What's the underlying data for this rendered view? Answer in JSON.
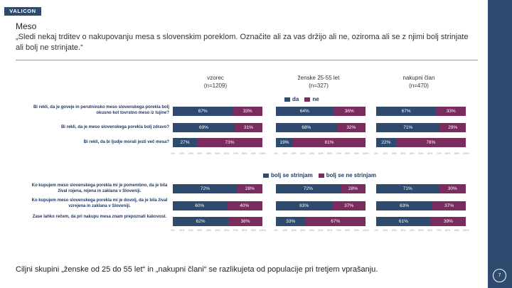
{
  "brand": {
    "logo_text": "VALICON"
  },
  "title": "Meso",
  "question": "„Sledi nekaj trditev o nakupovanju mesa s slovenskim poreklom. Označite ali za vas držijo ali ne, oziroma ali se z njimi bolj strinjate ali bolj ne strinjate.“",
  "footer": "Ciljni skupini „ženske od 25 do 55 let“ in „nakupni člani“ se razlikujeta od populacije pri tretjem vprašanju.",
  "page_number": "7",
  "columns": [
    {
      "label": "vzorec",
      "n": "(n=1209)"
    },
    {
      "label": "ženske 25-55 let",
      "n": "(n=327)"
    },
    {
      "label": "nakupni član",
      "n": "(n=470)"
    }
  ],
  "colors": {
    "series_a": "#2e4a6f",
    "series_b": "#7b2c5e",
    "accent": "#2e4a6f"
  },
  "chart_data": [
    {
      "type": "bar",
      "stacked": true,
      "orientation": "horizontal",
      "legend": [
        "da",
        "ne"
      ],
      "legend_position": "top-center",
      "categories": [
        "Bi rekli, da je goveje in perutninsko meso slovenskega porekla bolj okusno kot tovrstno meso iz tujine?",
        "Bi rekli, da je meso slovenskega porekla bolj zdravo?",
        "Bi rekli, da bi ljudje morali jesti več mesa?"
      ],
      "xlim": [
        0,
        100
      ],
      "xticks": [
        "0%",
        "10%",
        "20%",
        "30%",
        "40%",
        "50%",
        "60%",
        "70%",
        "80%",
        "90%",
        "100%"
      ],
      "panels": [
        {
          "column": "vzorec",
          "series": [
            {
              "name": "da",
              "values": [
                67,
                69,
                27
              ]
            },
            {
              "name": "ne",
              "values": [
                33,
                31,
                73
              ]
            }
          ]
        },
        {
          "column": "ženske 25-55 let",
          "series": [
            {
              "name": "da",
              "values": [
                64,
                68,
                19
              ]
            },
            {
              "name": "ne",
              "values": [
                36,
                32,
                81
              ]
            }
          ]
        },
        {
          "column": "nakupni član",
          "series": [
            {
              "name": "da",
              "values": [
                67,
                71,
                22
              ]
            },
            {
              "name": "ne",
              "values": [
                33,
                29,
                78
              ]
            }
          ]
        }
      ]
    },
    {
      "type": "bar",
      "stacked": true,
      "orientation": "horizontal",
      "legend": [
        "bolj se strinjam",
        "bolj se ne strinjam"
      ],
      "legend_position": "top-center",
      "categories": [
        "Ko kupujem meso slovenskega porekla mi je pomembno, da je bila žival rojena, rejena in zaklana v Sloveniji.",
        "Ko kupujem meso slovenskega porekla mi je dovolj, da je bila žival vzrejena in zaklana v Sloveniji.",
        "Zase lahko rečem, da pri nakupu mesa znam prepoznati kakovost."
      ],
      "xlim": [
        0,
        100
      ],
      "xticks": [
        "0%",
        "10%",
        "20%",
        "30%",
        "40%",
        "50%",
        "60%",
        "70%",
        "80%",
        "90%",
        "100%"
      ],
      "panels": [
        {
          "column": "vzorec",
          "series": [
            {
              "name": "bolj se strinjam",
              "values": [
                72,
                60,
                62
              ]
            },
            {
              "name": "bolj se ne strinjam",
              "values": [
                28,
                40,
                38
              ]
            }
          ]
        },
        {
          "column": "ženske 25-55 let",
          "series": [
            {
              "name": "bolj se strinjam",
              "values": [
                72,
                63,
                33
              ]
            },
            {
              "name": "bolj se ne strinjam",
              "values": [
                28,
                37,
                67
              ]
            }
          ]
        },
        {
          "column": "nakupni član",
          "series": [
            {
              "name": "bolj se strinjam",
              "values": [
                71,
                63,
                61
              ]
            },
            {
              "name": "bolj se ne strinjam",
              "values": [
                30,
                37,
                39
              ]
            }
          ]
        }
      ]
    }
  ]
}
